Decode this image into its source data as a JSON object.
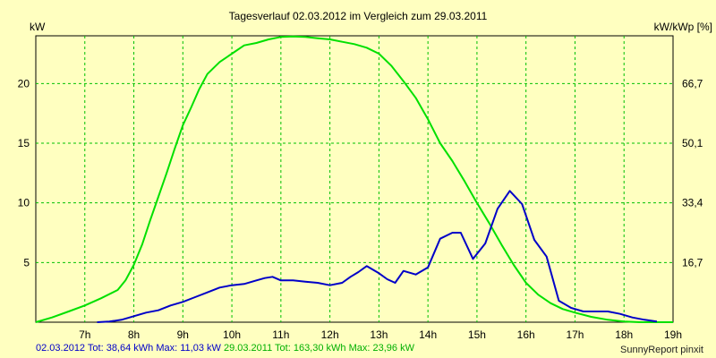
{
  "chart_data": {
    "type": "line",
    "title": "Tagesverlauf 02.03.2012 im Vergleich zum 29.03.2011",
    "ylabel": "kW",
    "y2label": "kW/kWp [%]",
    "x_ticks": [
      "7h",
      "8h",
      "9h",
      "10h",
      "11h",
      "12h",
      "13h",
      "14h",
      "15h",
      "16h",
      "17h",
      "18h",
      "19h"
    ],
    "xlim": [
      6.0,
      19.0
    ],
    "y_ticks": [
      "5",
      "10",
      "15",
      "20"
    ],
    "ylim": [
      0,
      24
    ],
    "y2_ticks": [
      "16,7",
      "33,4",
      "50,1",
      "66,7"
    ],
    "grid": true,
    "colors": {
      "series1": "#0000c8",
      "series2": "#00e000",
      "background": "#ffffc0",
      "grid": "#00c000"
    },
    "series": [
      {
        "name": "02.03.2012",
        "x": [
          7.25,
          7.5,
          7.75,
          8.0,
          8.25,
          8.5,
          8.75,
          9.0,
          9.25,
          9.5,
          9.75,
          10.0,
          10.25,
          10.5,
          10.67,
          10.83,
          11.0,
          11.25,
          11.5,
          11.75,
          12.0,
          12.25,
          12.42,
          12.58,
          12.75,
          13.0,
          13.17,
          13.33,
          13.5,
          13.75,
          14.0,
          14.25,
          14.5,
          14.67,
          14.92,
          15.17,
          15.42,
          15.67,
          15.92,
          16.17,
          16.42,
          16.67,
          16.92,
          17.17,
          17.42,
          17.67,
          17.92,
          18.17,
          18.42,
          18.67
        ],
        "values": [
          0,
          0.05,
          0.2,
          0.5,
          0.8,
          1.0,
          1.4,
          1.7,
          2.1,
          2.5,
          2.9,
          3.1,
          3.2,
          3.5,
          3.7,
          3.8,
          3.5,
          3.5,
          3.4,
          3.3,
          3.1,
          3.3,
          3.8,
          4.2,
          4.7,
          4.1,
          3.6,
          3.3,
          4.3,
          4.0,
          4.6,
          7.0,
          7.5,
          7.5,
          5.3,
          6.6,
          9.5,
          11.0,
          9.9,
          6.9,
          5.5,
          1.8,
          1.2,
          0.9,
          0.9,
          0.9,
          0.7,
          0.4,
          0.2,
          0.05
        ],
        "total": "38,64 kWh",
        "max": "11,03 kW"
      },
      {
        "name": "29.03.2011",
        "x": [
          6.0,
          6.33,
          6.67,
          7.0,
          7.33,
          7.67,
          7.83,
          8.0,
          8.17,
          8.33,
          8.5,
          8.67,
          8.83,
          9.0,
          9.17,
          9.33,
          9.5,
          9.75,
          10.0,
          10.25,
          10.5,
          10.75,
          11.0,
          11.25,
          11.5,
          11.75,
          12.0,
          12.25,
          12.5,
          12.75,
          13.0,
          13.25,
          13.5,
          13.75,
          14.0,
          14.25,
          14.5,
          14.75,
          15.0,
          15.25,
          15.5,
          15.75,
          16.0,
          16.25,
          16.5,
          16.75,
          17.0,
          17.33,
          17.67,
          18.0,
          18.33,
          18.67,
          19.0
        ],
        "values": [
          0,
          0.4,
          0.9,
          1.4,
          2.0,
          2.7,
          3.5,
          4.8,
          6.5,
          8.5,
          10.5,
          12.5,
          14.5,
          16.5,
          18.0,
          19.5,
          20.8,
          21.8,
          22.5,
          23.2,
          23.4,
          23.7,
          23.9,
          23.95,
          23.9,
          23.8,
          23.7,
          23.5,
          23.3,
          23.0,
          22.5,
          21.5,
          20.2,
          18.8,
          17.0,
          15.0,
          13.5,
          11.8,
          10.0,
          8.3,
          6.5,
          4.8,
          3.3,
          2.3,
          1.6,
          1.1,
          0.8,
          0.45,
          0.2,
          0.05,
          0,
          0,
          0
        ],
        "total": "163,30 kWh",
        "max": "23,96 kW"
      }
    ]
  },
  "footer": {
    "series1_text": "02.03.2012 Tot: 38,64 kWh Max: 11,03 kW",
    "series2_text": "29.03.2011 Tot: 163,30 kWh Max: 23,96 kW",
    "credit": "SunnyReport pinxit"
  }
}
